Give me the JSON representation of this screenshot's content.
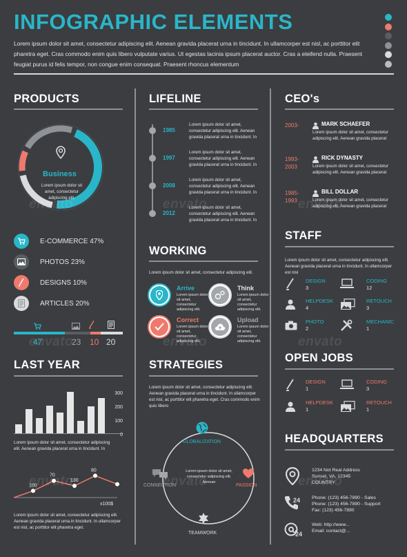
{
  "header": {
    "title": "INFOGRAPHIC ELEMENTS",
    "intro": "Lorem ipsum dolor sit amet, consectetur adipiscing elit. Aenean gravida placerat urna in tincidunt. In ullamcorper est nisl, ac porttitor elit pharetra eget. Cras commodo enim quis libero vulputate varius. Ut egestas lacinia ipsum placerat auctor. Cras a eleifend nulla. Praesent feugiat purus id felis tempor, non congue enim consequat. Praesent rhoncus elementum"
  },
  "colors": {
    "teal": "#29b6c9",
    "coral": "#ee7a6d",
    "dark": "#3b3d40",
    "light": "#e6e6e6",
    "dots": [
      "#29b6c9",
      "#ee7a6d",
      "#5a5d61",
      "#8e9195",
      "#d9dbdd",
      "#b9bbbe"
    ]
  },
  "watermark": "envato",
  "products": {
    "title": "PRODUCTS",
    "center_label": "Business",
    "center_text": "Lorem ipsum dolor sit amet, consectetur adipiscing elit.",
    "items": [
      {
        "label": "E-COMMERCE 47%",
        "icon": "cart-icon",
        "color": "#29b6c9"
      },
      {
        "label": "PHOTOS 23%",
        "icon": "image-icon",
        "color": "#5a5d61"
      },
      {
        "label": "DESIGNS 10%",
        "icon": "pen-icon",
        "color": "#ee7a6d"
      },
      {
        "label": "ARTICLES 20%",
        "icon": "document-icon",
        "color": "#d9dbdd"
      }
    ],
    "chart_data": {
      "type": "pie",
      "categories": [
        "E-COMMERCE",
        "PHOTOS",
        "DESIGNS",
        "ARTICLES"
      ],
      "values": [
        47,
        23,
        10,
        20
      ]
    },
    "bar_values": [
      "47",
      "23",
      "10",
      "20"
    ]
  },
  "lifeline": {
    "title": "LIFELINE",
    "items": [
      {
        "year": "1985",
        "text": "Lorem ipsum dolor sit amet, consectetur adipiscing elit. Aenean gravida placerat urna in tincidunt. In"
      },
      {
        "year": "1997",
        "text": "Lorem ipsum dolor sit amet, consectetur adipiscing elit. Aenean gravida placerat urna in tincidunt. In"
      },
      {
        "year": "2008",
        "text": "Lorem ipsum dolor sit amet, consectetur adipiscing elit. Aenean gravida placerat urna in tincidunt. In"
      },
      {
        "year": "2012",
        "text": "Lorem ipsum dolor sit amet, consectetur adipiscing elit. Aenean gravida placerat urna in tincidunt. In"
      }
    ]
  },
  "working": {
    "title": "WORKING",
    "text": "Lorem ipsum dolor sit amet, consectetur adipiscing elit.",
    "items": [
      {
        "label": "Arrive",
        "text": "Lorem ipsum dolor sit amet, consectetur adipiscing elit.",
        "icon": "location-pin-icon",
        "color": "#29b6c9"
      },
      {
        "label": "Think",
        "text": "Lorem ipsum dolor sit amet, consectetur adipiscing elit.",
        "icon": "gears-icon",
        "color": "#d9dbdd"
      },
      {
        "label": "Correct",
        "text": "Lorem ipsum dolor sit amet, consectetur adipiscing elit.",
        "icon": "check-icon",
        "color": "#ee7a6d"
      },
      {
        "label": "Upload",
        "text": "Lorem ipsum dolor sit amet, consectetur adipiscing elit.",
        "icon": "cloud-upload-icon",
        "color": "#d9dbdd"
      }
    ]
  },
  "strategies": {
    "title": "STRATEGIES",
    "text": "Lorem ipsum dolor sit amet, consectetur adipiscing elit. Aenean gravida placerat urna in tincidunt. In ullamcorper est nisl, ac porttitor elit pharetra eget. Cras commodo enim quis libero",
    "center_text": "Lorem ipsum dolor sit amet, consectetur adipiscing elit. Aenean",
    "nodes": [
      {
        "label": "GLOBALIZATION",
        "icon": "globe-icon"
      },
      {
        "label": "PASSION",
        "icon": "heart-icon"
      },
      {
        "label": "TEAMWORK",
        "icon": "puzzle-icon"
      },
      {
        "label": "CONNECTION",
        "icon": "chat-icon"
      }
    ]
  },
  "ceos": {
    "title": "CEO's",
    "items": [
      {
        "years": "2003-",
        "name": "MARK SCHAEFER",
        "text": "Lorem ipsum dolor sit amet, consectetur adipiscing elit. Aenean gravida placerat"
      },
      {
        "years": "1993-\n2003",
        "name": "RICK DYNASTY",
        "text": "Lorem ipsum dolor sit amet, consectetur adipiscing elit. Aenean gravida placerat"
      },
      {
        "years": "1985-\n1993",
        "name": "BILL DOLLAR",
        "text": "Lorem ipsum dolor sit amet, consectetur adipiscing elit. Aenean gravida placerat"
      }
    ]
  },
  "staff": {
    "title": "STAFF",
    "text": "Lorem ipsum dolor sit amet, consectetur adipiscing elit. Aenean gravida placerat urna in tincidunt. In ullamcorper est nisl",
    "items": [
      {
        "label": "DESIGN",
        "count": "3",
        "icon": "pen-icon"
      },
      {
        "label": "CODING",
        "count": "12",
        "icon": "laptop-icon"
      },
      {
        "label": "HELPDESK",
        "count": "4",
        "icon": "headset-icon"
      },
      {
        "label": "RETOUCH",
        "count": "3",
        "icon": "images-icon"
      },
      {
        "label": "PHOTO",
        "count": "2",
        "icon": "camera-icon"
      },
      {
        "label": "MECHANIC",
        "count": "1",
        "icon": "tools-icon"
      }
    ]
  },
  "open_jobs": {
    "title": "OPEN JOBS",
    "items": [
      {
        "label": "DESIGN",
        "count": "1",
        "icon": "pen-icon"
      },
      {
        "label": "CODING",
        "count": "3",
        "icon": "laptop-icon"
      },
      {
        "label": "HELPDESK",
        "count": "1",
        "icon": "headset-icon"
      },
      {
        "label": "RETOUCH",
        "count": "1",
        "icon": "images-icon"
      }
    ]
  },
  "headquarters": {
    "title": "HEADQUARTERS",
    "address": [
      "1234 Not Real Address",
      "Sunset, VA, 12345",
      "COUNTRY"
    ],
    "phones": [
      "Phone: (123) 456-7890 - Sales",
      "Phone: (123) 456-7890 - Support",
      "Fax: (123) 456-7890"
    ],
    "web": [
      "Web: http://www...",
      "Email: contact@..."
    ]
  },
  "last_year": {
    "title": "LAST YEAR",
    "bar_text": "Lorem ipsum dolor sit amet, consectetur adipiscing elit. Aenean gravida placerat urna in tincidunt. In",
    "line_text": "Lorem ipsum dolor sit amet, consectetur adipiscing elit. Aenean gravida placerat urna in tincidunt. In ullamcorper est nisl, ac porttitor elit pharetra eget.",
    "unit": "x100$",
    "chart_data": [
      {
        "type": "bar",
        "categories": [
          "1",
          "2",
          "3",
          "4",
          "5",
          "6",
          "7",
          "8",
          "9"
        ],
        "values": [
          65,
          170,
          105,
          195,
          145,
          290,
          85,
          190,
          245
        ],
        "ylim": [
          0,
          300
        ],
        "yticks": [
          "300",
          "200",
          "100",
          "0"
        ]
      },
      {
        "type": "line",
        "x": [
          1,
          2,
          3,
          4,
          5
        ],
        "values": [
          40,
          100,
          70,
          130,
          80
        ],
        "labels": [
          "100",
          "70",
          "130",
          "80"
        ]
      }
    ]
  }
}
